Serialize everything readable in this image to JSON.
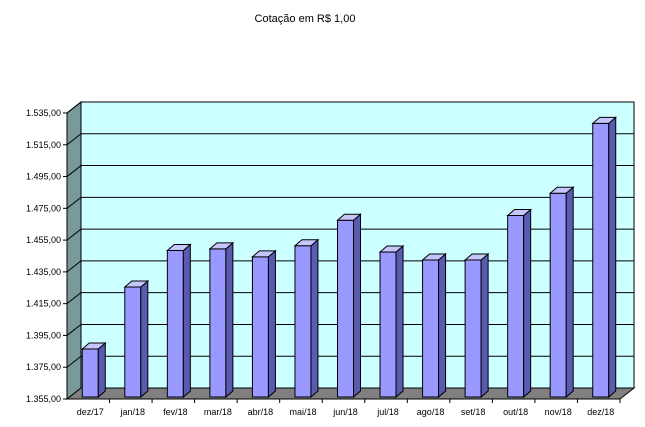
{
  "chart_data": {
    "type": "bar",
    "title": "Cotação  em  R$ 1,00",
    "xlabel": "",
    "ylabel": "",
    "categories": [
      "dez/17",
      "jan/18",
      "fev/18",
      "mar/18",
      "abr/18",
      "mai/18",
      "jun/18",
      "jul/18",
      "ago/18",
      "set/18",
      "out/18",
      "nov/18",
      "dez/18"
    ],
    "values": [
      1389.0,
      1428.0,
      1451.0,
      1452.0,
      1447.0,
      1454.0,
      1470.0,
      1450.0,
      1445.0,
      1445.0,
      1473.0,
      1487.0,
      1531.0
    ],
    "ylim": [
      1355,
      1535
    ],
    "yticks": [
      "1.355,00",
      "1.375,00",
      "1.395,00",
      "1.415,00",
      "1.435,00",
      "1.455,00",
      "1.475,00",
      "1.495,00",
      "1.515,00",
      "1.535,00"
    ],
    "grid": true,
    "legend": "none",
    "colors": {
      "bar_front": "#9999ff",
      "bar_side": "#5a5ab0",
      "bar_top": "#c6c6ff",
      "bar_outline": "#000000",
      "back_wall": "#ccffff",
      "side_wall": "#7a9a9a",
      "floor": "#808080",
      "grid": "#000000"
    }
  }
}
